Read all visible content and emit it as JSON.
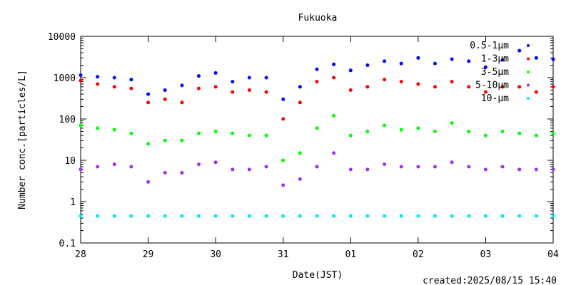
{
  "chart_data": {
    "type": "scatter",
    "title": "Fukuoka",
    "xlabel": "Date(JST)",
    "ylabel": "Number conc.[particles/L]",
    "yscale": "log",
    "ylim": [
      0.1,
      10000
    ],
    "y_ticks": [
      "0.1",
      "1",
      "10",
      "100",
      "1000",
      "10000"
    ],
    "x_ticks": [
      "28",
      "29",
      "30",
      "31",
      "01",
      "02",
      "03",
      "04"
    ],
    "grid": false,
    "legend_position": "top-right",
    "footer": "created:2025/08/15 15:40",
    "series": [
      {
        "name": "0.5-1μm",
        "color": "#0000ff",
        "x": [
          0,
          0.25,
          0.5,
          0.75,
          1.0,
          1.25,
          1.5,
          1.75,
          2.0,
          2.25,
          2.5,
          2.75,
          3.0,
          3.25,
          3.5,
          3.75,
          4.0,
          4.25,
          4.5,
          4.75,
          5.0,
          5.25,
          5.5,
          5.75,
          6.0,
          6.25,
          6.5,
          6.75,
          7.0
        ],
        "values": [
          1150,
          1050,
          1000,
          900,
          400,
          500,
          650,
          1100,
          1300,
          800,
          1000,
          1000,
          300,
          600,
          1600,
          2100,
          1500,
          2000,
          2500,
          2200,
          3000,
          2200,
          2800,
          2500,
          1800,
          2700,
          4500,
          3000,
          2800
        ]
      },
      {
        "name": "1-3μm",
        "color": "#ff0000",
        "x": [
          0,
          0.25,
          0.5,
          0.75,
          1.0,
          1.25,
          1.5,
          1.75,
          2.0,
          2.25,
          2.5,
          2.75,
          3.0,
          3.25,
          3.5,
          3.75,
          4.0,
          4.25,
          4.5,
          4.75,
          5.0,
          5.25,
          5.5,
          5.75,
          6.0,
          6.25,
          6.5,
          6.75,
          7.0
        ],
        "values": [
          850,
          700,
          600,
          550,
          250,
          300,
          250,
          550,
          600,
          450,
          500,
          450,
          100,
          250,
          800,
          1000,
          500,
          600,
          900,
          800,
          700,
          600,
          800,
          600,
          450,
          600,
          600,
          450,
          600
        ]
      },
      {
        "name": "3-5μm",
        "color": "#00ff00",
        "x": [
          0,
          0.25,
          0.5,
          0.75,
          1.0,
          1.25,
          1.5,
          1.75,
          2.0,
          2.25,
          2.5,
          2.75,
          3.0,
          3.25,
          3.5,
          3.75,
          4.0,
          4.25,
          4.5,
          4.75,
          5.0,
          5.25,
          5.5,
          5.75,
          6.0,
          6.25,
          6.5,
          6.75,
          7.0
        ],
        "values": [
          70,
          60,
          55,
          45,
          25,
          30,
          30,
          45,
          50,
          45,
          40,
          40,
          10,
          15,
          60,
          120,
          40,
          50,
          70,
          55,
          60,
          50,
          80,
          50,
          40,
          50,
          45,
          40,
          45
        ]
      },
      {
        "name": "5-10μm",
        "color": "#a030f0",
        "x": [
          0,
          0.25,
          0.5,
          0.75,
          1.0,
          1.25,
          1.5,
          1.75,
          2.0,
          2.25,
          2.5,
          2.75,
          3.0,
          3.25,
          3.5,
          3.75,
          4.0,
          4.25,
          4.5,
          4.75,
          5.0,
          5.25,
          5.5,
          5.75,
          6.0,
          6.25,
          6.5,
          6.75,
          7.0
        ],
        "values": [
          6,
          7,
          8,
          7,
          3,
          5,
          5,
          8,
          9,
          6,
          6,
          7,
          2.5,
          3.5,
          7,
          15,
          6,
          6,
          8,
          7,
          7,
          7,
          9,
          7,
          6,
          7,
          6,
          6,
          6
        ]
      },
      {
        "name": "10-μm",
        "color": "#00e8e8",
        "x": [
          0,
          0.25,
          0.5,
          0.75,
          1.0,
          1.25,
          1.5,
          1.75,
          2.0,
          2.25,
          2.5,
          2.75,
          3.0,
          3.25,
          3.5,
          3.75,
          4.0,
          4.25,
          4.5,
          4.75,
          5.0,
          5.25,
          5.5,
          5.75,
          6.0,
          6.25,
          6.5,
          6.75,
          7.0
        ],
        "values": [
          0.45,
          0.45,
          0.45,
          0.45,
          0.45,
          0.45,
          0.45,
          0.45,
          0.45,
          0.45,
          0.45,
          0.45,
          0.45,
          0.45,
          0.45,
          0.45,
          0.45,
          0.45,
          0.45,
          0.45,
          0.45,
          0.45,
          0.45,
          0.45,
          0.45,
          0.45,
          0.45,
          0.45,
          0.45
        ]
      }
    ]
  }
}
